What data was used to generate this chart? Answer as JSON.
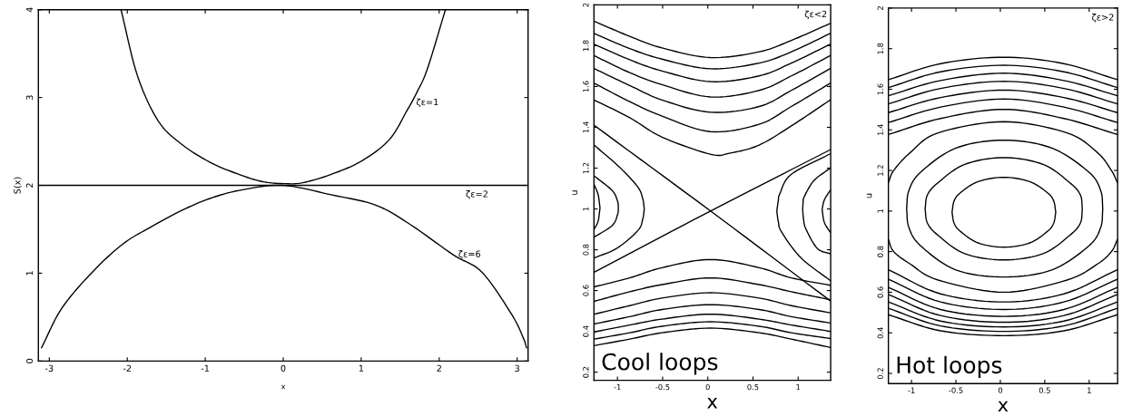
{
  "chart_data": [
    {
      "type": "line",
      "xlabel": "x",
      "ylabel": "S(x)",
      "xlim": [
        -3.14,
        3.14
      ],
      "ylim": [
        0,
        4
      ],
      "xticks": [
        -3,
        -2,
        -1,
        0,
        1,
        2,
        3
      ],
      "yticks": [
        0,
        1,
        2,
        3,
        4
      ],
      "grid": false,
      "legend": false,
      "series": [
        {
          "color": "#000000",
          "x": [
            -2.08,
            -1.87,
            -1.6,
            -1.29,
            -0.91,
            -0.52,
            -0.25,
            0,
            0.25,
            0.63,
            1.01,
            1.36,
            1.586,
            1.72,
            1.85,
            2.08
          ],
          "values": [
            4.0,
            3.25,
            2.73,
            2.46,
            2.25,
            2.11,
            2.04,
            2.02,
            2.03,
            2.13,
            2.28,
            2.52,
            2.85,
            3.07,
            3.33,
            4.0
          ]
        },
        {
          "color": "#000000",
          "x": [
            -3.14,
            3.14
          ],
          "values": [
            2.0,
            2.0
          ]
        },
        {
          "color": "#000000",
          "x": [
            -3.1,
            -2.84,
            -2.45,
            -2.06,
            -1.71,
            -1.29,
            -0.91,
            -0.52,
            0,
            0.63,
            1.17,
            1.586,
            2.18,
            2.55,
            2.93,
            3.08,
            3.12
          ],
          "values": [
            0.15,
            0.6,
            1.01,
            1.33,
            1.52,
            1.72,
            1.86,
            1.95,
            2.0,
            1.89,
            1.78,
            1.58,
            1.21,
            1.01,
            0.53,
            0.26,
            0.15
          ]
        }
      ],
      "annotations": [
        {
          "text": "ζε=1",
          "x": 1.64,
          "y": 2.94
        },
        {
          "text": "ζε=2",
          "x": 2.34,
          "y": 2.0
        },
        {
          "text": "ζε=6",
          "x": 2.18,
          "y": 1.21
        }
      ]
    },
    {
      "type": "line",
      "title": "Cool loops",
      "xlabel": "x",
      "ylabel": "u",
      "xlim": [
        -1.26,
        1.36
      ],
      "ylim": [
        0.16,
        2
      ],
      "xticks": [
        -1,
        -0.5,
        0,
        0.5,
        1
      ],
      "yticks": [
        0.2,
        0.4,
        0.6,
        0.8,
        1,
        1.2,
        1.4,
        1.6,
        1.8,
        2
      ],
      "grid": false,
      "legend": false,
      "series": [
        {
          "color": "#000000",
          "x": [
            -1.258,
            0.03,
            1.355
          ],
          "values": [
            1.41,
            0.99,
            0.55
          ]
        },
        {
          "color": "#000000",
          "x": [
            -1.258,
            0.03,
            1.355
          ],
          "values": [
            0.69,
            0.99,
            1.29
          ]
        },
        {
          "color": "#000000",
          "x": [
            -1.258,
            -0.864,
            -0.506,
            0.03,
            0.568,
            0.925,
            1.355
          ],
          "values": [
            1.92,
            1.846,
            1.789,
            1.742,
            1.77,
            1.826,
            1.909
          ]
        },
        {
          "color": "#000000",
          "x": [
            -1.258,
            -0.864,
            -0.506,
            0.03,
            0.568,
            0.925,
            1.355
          ],
          "values": [
            1.86,
            1.786,
            1.734,
            1.687,
            1.715,
            1.77,
            1.86
          ]
        },
        {
          "color": "#000000",
          "x": [
            -1.258,
            -0.864,
            -0.506,
            0.03,
            0.568,
            0.925,
            1.355
          ],
          "values": [
            1.807,
            1.731,
            1.676,
            1.624,
            1.652,
            1.715,
            1.807
          ]
        },
        {
          "color": "#000000",
          "x": [
            -1.258,
            -0.864,
            -0.506,
            0.03,
            0.568,
            0.925,
            1.355
          ],
          "values": [
            1.751,
            1.668,
            1.609,
            1.549,
            1.581,
            1.652,
            1.751
          ]
        },
        {
          "color": "#000000",
          "x": [
            -1.258,
            -0.864,
            -0.506,
            0.03,
            0.568,
            0.925,
            1.355
          ],
          "values": [
            1.688,
            1.605,
            1.534,
            1.474,
            1.502,
            1.581,
            1.688
          ]
        },
        {
          "color": "#000000",
          "x": [
            -1.258,
            -0.864,
            -0.506,
            0.03,
            0.568,
            0.925,
            1.355
          ],
          "values": [
            1.616,
            1.526,
            1.455,
            1.379,
            1.415,
            1.502,
            1.616
          ]
        },
        {
          "color": "#000000",
          "x": [
            -1.258,
            -0.864,
            -0.506,
            0.03,
            0.25,
            0.568,
            0.925,
            1.355
          ],
          "values": [
            1.534,
            1.447,
            1.352,
            1.268,
            1.274,
            1.313,
            1.407,
            1.534
          ]
        },
        {
          "color": "#000000",
          "x": [
            -1.258,
            -0.864,
            -0.506,
            0.03,
            0.568,
            0.925,
            1.355
          ],
          "values": [
            0.618,
            0.662,
            0.712,
            0.752,
            0.712,
            0.662,
            0.626
          ]
        },
        {
          "color": "#000000",
          "x": [
            -1.258,
            -0.864,
            -0.506,
            0.03,
            0.568,
            0.925,
            1.355
          ],
          "values": [
            0.547,
            0.594,
            0.629,
            0.662,
            0.629,
            0.594,
            0.555
          ]
        },
        {
          "color": "#000000",
          "x": [
            -1.258,
            -0.864,
            -0.506,
            0.03,
            0.568,
            0.925,
            1.355
          ],
          "values": [
            0.484,
            0.526,
            0.563,
            0.589,
            0.563,
            0.526,
            0.491
          ]
        },
        {
          "color": "#000000",
          "x": [
            -1.258,
            -0.864,
            -0.506,
            0.03,
            0.568,
            0.925,
            1.355
          ],
          "values": [
            0.436,
            0.472,
            0.507,
            0.531,
            0.507,
            0.472,
            0.441
          ]
        },
        {
          "color": "#000000",
          "x": [
            -1.258,
            -0.864,
            -0.506,
            0.03,
            0.568,
            0.925,
            1.355
          ],
          "values": [
            0.397,
            0.431,
            0.46,
            0.484,
            0.46,
            0.431,
            0.4
          ]
        },
        {
          "color": "#000000",
          "x": [
            -1.258,
            -0.864,
            -0.506,
            0.03,
            0.568,
            0.925,
            1.355
          ],
          "values": [
            0.362,
            0.393,
            0.425,
            0.447,
            0.425,
            0.393,
            0.365
          ]
        },
        {
          "color": "#000000",
          "x": [
            -1.258,
            -0.864,
            -0.506,
            0.03,
            0.568,
            0.925,
            1.355
          ],
          "values": [
            0.33,
            0.362,
            0.393,
            0.416,
            0.393,
            0.362,
            0.321
          ]
        },
        {
          "color": "#000000",
          "x": [
            -1.258,
            -0.971,
            -0.774,
            -0.72,
            -0.703,
            null,
            -0.703,
            -0.72,
            -0.774,
            -1.007,
            -1.258
          ],
          "values": [
            1.313,
            1.202,
            1.107,
            1.05,
            0.999,
            null,
            0.999,
            0.95,
            0.894,
            0.807,
            0.76
          ]
        },
        {
          "color": "#000000",
          "x": [
            -1.258,
            -1.06,
            -1.0,
            -0.989,
            null,
            -0.989,
            -1.0,
            -1.06,
            -1.258
          ],
          "values": [
            1.162,
            1.091,
            1.04,
            1.005,
            null,
            1.005,
            0.97,
            0.918,
            0.862
          ]
        },
        {
          "color": "#000000",
          "x": [
            -1.258,
            -1.214,
            -1.193,
            null,
            -1.193,
            -1.214,
            -1.258
          ],
          "values": [
            1.12,
            1.07,
            1.005,
            null,
            1.005,
            0.94,
            0.9
          ]
        },
        {
          "color": "#000000",
          "x": [
            1.355,
            0.925,
            0.799,
            0.78,
            0.764,
            null,
            0.764,
            0.78,
            0.818,
            1.032,
            1.355
          ],
          "values": [
            1.27,
            1.17,
            1.076,
            1.04,
            0.989,
            null,
            0.989,
            0.94,
            0.886,
            0.76,
            0.649
          ]
        },
        {
          "color": "#000000",
          "x": [
            1.355,
            1.175,
            1.068,
            1.055,
            1.05,
            null,
            1.05,
            1.06,
            1.086,
            1.211,
            1.355
          ],
          "values": [
            1.2,
            1.139,
            1.06,
            1.03,
            0.997,
            null,
            0.997,
            0.95,
            0.902,
            0.807,
            0.78
          ]
        },
        {
          "color": "#000000",
          "x": [
            1.355,
            1.29,
            1.265,
            null,
            1.265,
            1.29,
            1.355
          ],
          "values": [
            1.091,
            1.044,
            0.997,
            null,
            0.997,
            0.934,
            0.886
          ]
        }
      ],
      "annotations": [
        "ζε<2"
      ]
    },
    {
      "type": "line",
      "title": "Hot loops",
      "xlabel": "x",
      "ylabel": "u",
      "xlim": [
        -1.26,
        1.32
      ],
      "ylim": [
        0.15,
        2
      ],
      "xticks": [
        -1,
        -0.5,
        0,
        0.5,
        1
      ],
      "yticks": [
        0.2,
        0.4,
        0.6,
        0.8,
        1,
        1.2,
        1.4,
        1.6,
        1.8,
        2
      ],
      "grid": false,
      "legend": false,
      "series": [
        {
          "color": "#000000",
          "x": [
            -0.544,
            -0.52,
            -0.45,
            -0.25,
            0.04,
            0.33,
            0.53,
            0.6,
            0.624,
            null,
            0.624,
            0.6,
            0.53,
            0.33,
            0.04,
            -0.25,
            -0.45,
            -0.52,
            -0.544
          ],
          "values": [
            0.994,
            1.05,
            1.09,
            1.145,
            1.166,
            1.145,
            1.09,
            1.05,
            0.994,
            null,
            0.994,
            0.94,
            0.9,
            0.843,
            0.822,
            0.843,
            0.9,
            0.94,
            0.994
          ]
        },
        {
          "color": "#000000",
          "x": [
            -0.847,
            -0.82,
            -0.7,
            -0.4,
            0.04,
            0.48,
            0.78,
            0.9,
            0.923,
            null,
            0.923,
            0.9,
            0.78,
            0.48,
            0.04,
            -0.4,
            -0.7,
            -0.82,
            -0.847
          ],
          "values": [
            1.011,
            1.08,
            1.14,
            1.23,
            1.263,
            1.23,
            1.14,
            1.08,
            1.011,
            null,
            1.011,
            0.94,
            0.88,
            0.79,
            0.759,
            0.79,
            0.88,
            0.94,
            1.011
          ]
        },
        {
          "color": "#000000",
          "x": [
            -1.055,
            -1.03,
            -0.9,
            -0.5,
            0.04,
            0.58,
            1.0,
            1.13,
            1.153,
            null,
            1.153,
            1.13,
            1.0,
            0.58,
            0.04,
            -0.5,
            -0.9,
            -1.03,
            -1.055
          ],
          "values": [
            1.012,
            1.1,
            1.19,
            1.31,
            1.349,
            1.31,
            1.19,
            1.1,
            1.012,
            null,
            1.012,
            0.92,
            0.83,
            0.71,
            0.675,
            0.71,
            0.83,
            0.92,
            1.012
          ]
        },
        {
          "color": "#000000",
          "x": [
            -1.26,
            -1.2,
            -1.011,
            -0.7,
            0.04,
            0.75,
            1.09,
            1.25,
            1.318
          ],
          "values": [
            1.14,
            1.2,
            1.289,
            1.385,
            1.44,
            1.385,
            1.289,
            1.2,
            1.14
          ]
        },
        {
          "color": "#000000",
          "x": [
            -1.26,
            -1.2,
            -1.011,
            -0.7,
            0.04,
            0.75,
            1.09,
            1.25,
            1.318
          ],
          "values": [
            0.86,
            0.8,
            0.738,
            0.66,
            0.6,
            0.66,
            0.738,
            0.8,
            0.86
          ]
        },
        {
          "color": "#000000",
          "x": [
            -1.26,
            -0.672,
            0.04,
            0.715,
            1.318
          ],
          "values": [
            1.647,
            1.726,
            1.758,
            1.726,
            1.647
          ]
        },
        {
          "color": "#000000",
          "x": [
            -1.26,
            -0.672,
            0.04,
            0.715,
            1.318
          ],
          "values": [
            1.608,
            1.686,
            1.718,
            1.686,
            1.608
          ]
        },
        {
          "color": "#000000",
          "x": [
            -1.26,
            -0.672,
            0.04,
            0.715,
            1.318
          ],
          "values": [
            1.568,
            1.643,
            1.679,
            1.643,
            1.568
          ]
        },
        {
          "color": "#000000",
          "x": [
            -1.26,
            -0.672,
            0.04,
            0.715,
            1.318
          ],
          "values": [
            1.528,
            1.604,
            1.639,
            1.604,
            1.528
          ]
        },
        {
          "color": "#000000",
          "x": [
            -1.26,
            -0.672,
            0.04,
            0.715,
            1.318
          ],
          "values": [
            1.485,
            1.559,
            1.596,
            1.559,
            1.485
          ]
        },
        {
          "color": "#000000",
          "x": [
            -1.26,
            -0.672,
            0.04,
            0.715,
            1.318
          ],
          "values": [
            1.436,
            1.512,
            1.552,
            1.512,
            1.436
          ]
        },
        {
          "color": "#000000",
          "x": [
            -1.26,
            -0.672,
            0.04,
            0.715,
            1.318
          ],
          "values": [
            1.377,
            1.456,
            1.501,
            1.456,
            1.377
          ]
        },
        {
          "color": "#000000",
          "x": [
            -1.26,
            -0.672,
            0.04,
            0.715,
            1.318
          ],
          "values": [
            0.489,
            0.41,
            0.386,
            0.41,
            0.489
          ]
        },
        {
          "color": "#000000",
          "x": [
            -1.26,
            -0.672,
            0.04,
            0.715,
            1.318
          ],
          "values": [
            0.521,
            0.434,
            0.407,
            0.434,
            0.521
          ]
        },
        {
          "color": "#000000",
          "x": [
            -1.26,
            -0.672,
            0.04,
            0.715,
            1.318
          ],
          "values": [
            0.552,
            0.458,
            0.429,
            0.458,
            0.552
          ]
        },
        {
          "color": "#000000",
          "x": [
            -1.26,
            -0.672,
            0.04,
            0.715,
            1.318
          ],
          "values": [
            0.589,
            0.485,
            0.452,
            0.485,
            0.589
          ]
        },
        {
          "color": "#000000",
          "x": [
            -1.26,
            -0.672,
            0.04,
            0.715,
            1.318
          ],
          "values": [
            0.624,
            0.515,
            0.481,
            0.515,
            0.624
          ]
        },
        {
          "color": "#000000",
          "x": [
            -1.26,
            -0.672,
            0.04,
            0.715,
            1.318
          ],
          "values": [
            0.664,
            0.552,
            0.515,
            0.552,
            0.664
          ]
        },
        {
          "color": "#000000",
          "x": [
            -1.26,
            -0.672,
            0.04,
            0.715,
            1.318
          ],
          "values": [
            0.711,
            0.592,
            0.552,
            0.592,
            0.711
          ]
        }
      ],
      "annotations": [
        "ζε>2"
      ]
    }
  ]
}
